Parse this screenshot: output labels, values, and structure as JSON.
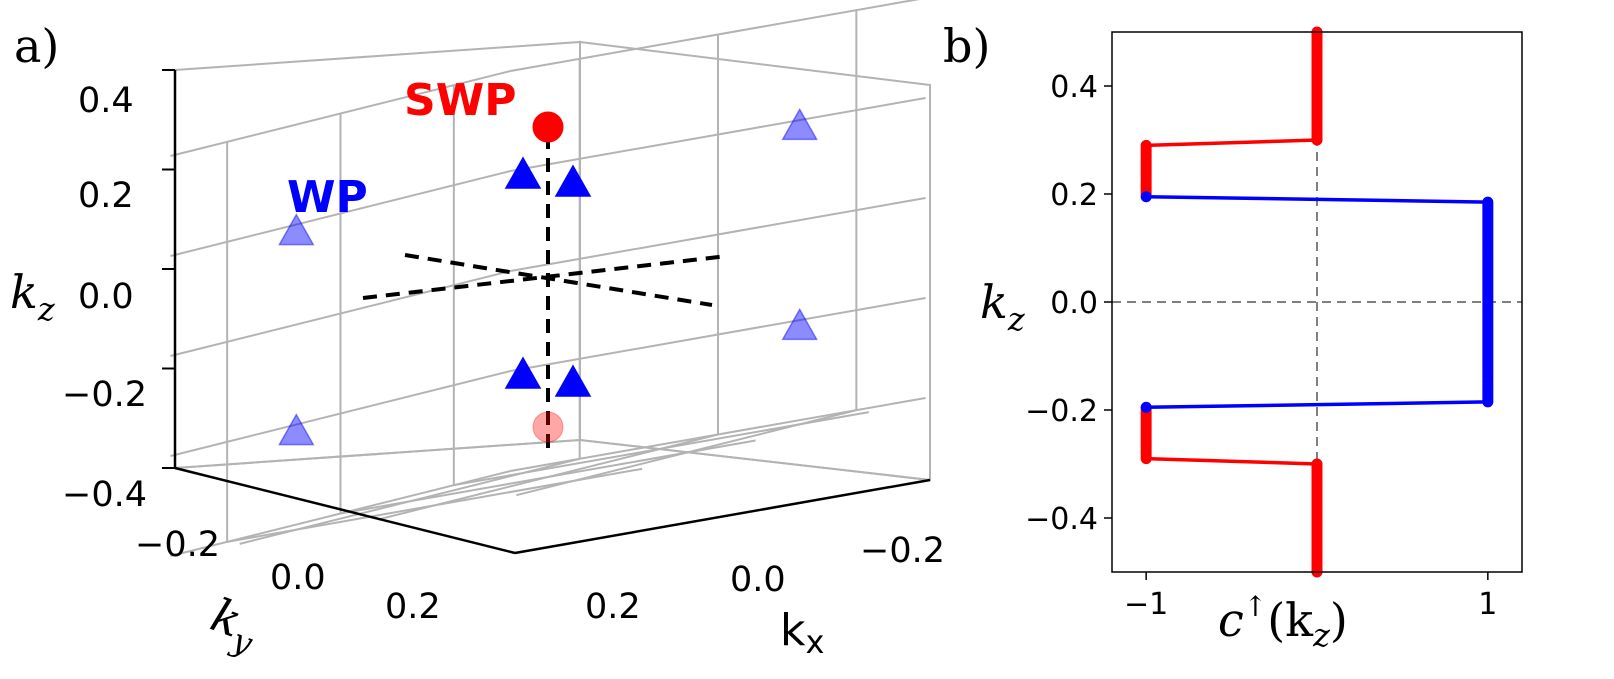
{
  "chart_data": [
    {
      "panel": "a)",
      "type": "scatter3d",
      "xlabel": "k",
      "xlabel_sub": "x",
      "ylabel": "k",
      "ylabel_sub": "y",
      "zlabel": "k",
      "zlabel_sub": "z",
      "xlim": [
        -0.3,
        0.3
      ],
      "ylim": [
        -0.3,
        0.3
      ],
      "zlim": [
        -0.4,
        0.4
      ],
      "x_ticks": [
        "−0.2",
        "0.0",
        "0.2"
      ],
      "y_ticks": [
        "−0.2",
        "0.0",
        "0.2"
      ],
      "z_ticks": [
        "0.4",
        "0.2",
        "0.0",
        "−0.2",
        "−0.4"
      ],
      "annotations": [
        {
          "text": "SWP",
          "color": "#ff0000"
        },
        {
          "text": "WP",
          "color": "#0000ff"
        }
      ],
      "series": [
        {
          "name": "SWP",
          "marker": "circle",
          "color": "#ff0000",
          "points": [
            {
              "x": 0,
              "y": 0,
              "z": 0.3,
              "alpha": 1.0
            },
            {
              "x": 0,
              "y": 0,
              "z": -0.3,
              "alpha": 0.35
            }
          ]
        },
        {
          "name": "WP",
          "marker": "triangle",
          "color": "#0000ff",
          "points": [
            {
              "x": 0.2,
              "y": 0.2,
              "z": 0.2,
              "alpha": 1.0
            },
            {
              "x": -0.2,
              "y": -0.2,
              "z": 0.2,
              "alpha": 1.0
            },
            {
              "x": 0.2,
              "y": -0.2,
              "z": 0.2,
              "alpha": 0.45
            },
            {
              "x": -0.2,
              "y": 0.2,
              "z": 0.2,
              "alpha": 0.45
            },
            {
              "x": 0.2,
              "y": 0.2,
              "z": -0.2,
              "alpha": 1.0
            },
            {
              "x": -0.2,
              "y": -0.2,
              "z": -0.2,
              "alpha": 1.0
            },
            {
              "x": 0.2,
              "y": -0.2,
              "z": -0.2,
              "alpha": 0.45
            },
            {
              "x": -0.2,
              "y": 0.2,
              "z": -0.2,
              "alpha": 0.45
            }
          ]
        }
      ]
    },
    {
      "panel": "b)",
      "type": "line",
      "xlabel": "c",
      "xlabel_sup": "↑",
      "xlabel_arg": "(k",
      "xlabel_arg_sub": "z",
      "xlabel_close": ")",
      "ylabel": "k",
      "ylabel_sub": "z",
      "xlim": [
        -1.2,
        1.2
      ],
      "ylim": [
        -0.5,
        0.5
      ],
      "x_ticks": [
        {
          "value": -1,
          "label": "−1"
        },
        {
          "value": 1,
          "label": "1"
        }
      ],
      "y_ticks": [
        {
          "value": 0.4,
          "label": "0.4"
        },
        {
          "value": 0.2,
          "label": "0.2"
        },
        {
          "value": 0.0,
          "label": "0.0"
        },
        {
          "value": -0.2,
          "label": "−0.2"
        },
        {
          "value": -0.4,
          "label": "−0.4"
        }
      ],
      "ref_lines": [
        {
          "axis": "x",
          "value": 0
        },
        {
          "axis": "y",
          "value": 0
        }
      ],
      "series": [
        {
          "name": "c_up_upper_red",
          "color": "#ff0000",
          "segments": [
            [
              [
                0,
                0.5
              ],
              [
                0,
                0.3
              ],
              [
                -1,
                0.29
              ],
              [
                -1,
                0.2
              ]
            ]
          ]
        },
        {
          "name": "c_up_middle_blue",
          "color": "#0000ff",
          "segments": [
            [
              [
                -1,
                0.195
              ],
              [
                1,
                0.185
              ],
              [
                1,
                -0.185
              ],
              [
                -1,
                -0.195
              ]
            ]
          ]
        },
        {
          "name": "c_up_lower_red",
          "color": "#ff0000",
          "segments": [
            [
              [
                -1,
                -0.2
              ],
              [
                -1,
                -0.29
              ],
              [
                0,
                -0.3
              ],
              [
                0,
                -0.5
              ]
            ]
          ]
        }
      ],
      "marker_columns": [
        {
          "x": 0,
          "from": 0.3,
          "to": 0.5,
          "color": "#ff0000"
        },
        {
          "x": -1,
          "from": 0.2,
          "to": 0.29,
          "color": "#ff0000"
        },
        {
          "x": 1,
          "from": -0.185,
          "to": 0.185,
          "color": "#0000ff"
        },
        {
          "x": -1,
          "from": -0.29,
          "to": -0.2,
          "color": "#ff0000"
        },
        {
          "x": 0,
          "from": -0.5,
          "to": -0.3,
          "color": "#ff0000"
        }
      ],
      "marker_points": [
        {
          "x": -1,
          "y": 0.195,
          "color": "#0000ff"
        },
        {
          "x": -1,
          "y": -0.195,
          "color": "#0000ff"
        }
      ]
    }
  ]
}
